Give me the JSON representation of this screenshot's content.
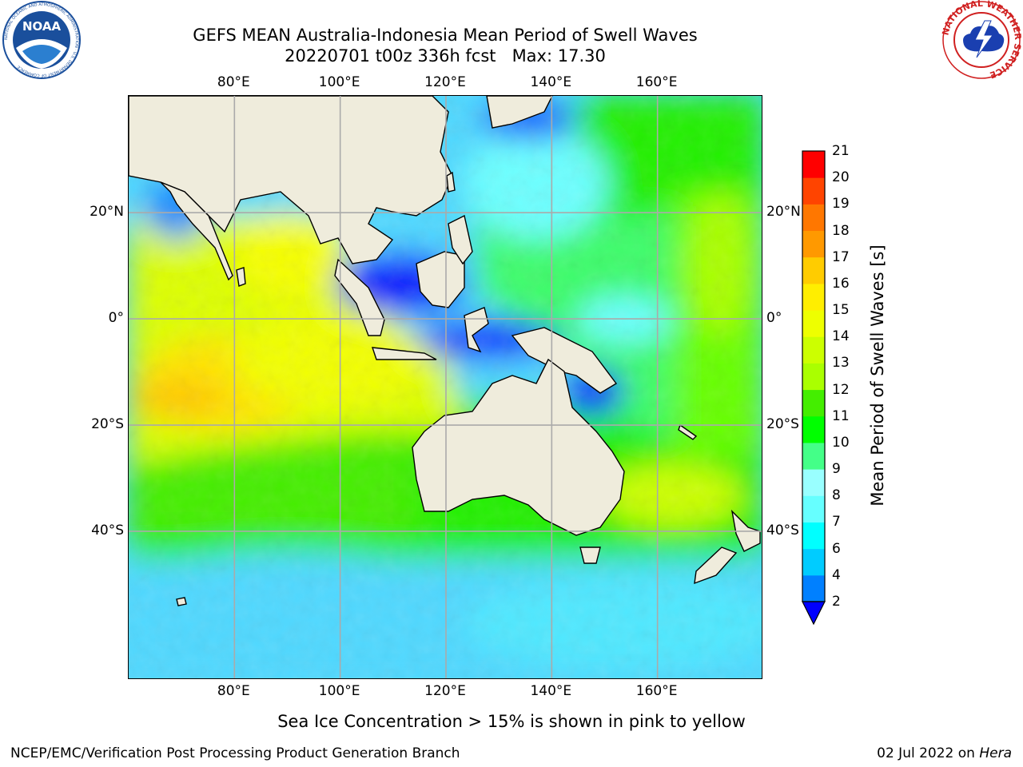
{
  "header": {
    "title_line1": "GEFS MEAN Australia-Indonesia Mean Period of Swell Waves",
    "title_line2": "20220701 t00z 336h fcst   Max: 17.30"
  },
  "logos": {
    "left": {
      "name": "noaa-logo",
      "text": "NOAA",
      "ring_text": "NATIONAL OCEANIC AND ATMOSPHERIC ADMINISTRATION · U.S. DEPARTMENT OF COMMERCE"
    },
    "right": {
      "name": "nws-logo",
      "ring_text": "NATIONAL WEATHER SERVICE"
    }
  },
  "map": {
    "lon_labels": [
      "80°E",
      "100°E",
      "120°E",
      "140°E",
      "160°E"
    ],
    "lat_labels": [
      "20°N",
      "0°",
      "20°S",
      "40°S"
    ],
    "lon_values": [
      80,
      100,
      120,
      140,
      160
    ],
    "lat_values": [
      20,
      0,
      -20,
      -40
    ],
    "lon_range": [
      60,
      180
    ],
    "lat_range": [
      -68,
      42
    ],
    "grid": true,
    "land_color": "#efecdc",
    "coastline_color": "#000000"
  },
  "colorbar": {
    "label": "Mean Period of Swell Waves [s]",
    "ticks": [
      "2",
      "4",
      "6",
      "7",
      "8",
      "9",
      "10",
      "11",
      "12",
      "13",
      "14",
      "15",
      "16",
      "17",
      "18",
      "19",
      "20",
      "21"
    ],
    "colors": [
      "#0080ff",
      "#00ccff",
      "#00ffff",
      "#66ffff",
      "#99ffff",
      "#44ff88",
      "#00ff00",
      "#44ee00",
      "#aaff00",
      "#ccff00",
      "#eeff00",
      "#ffee00",
      "#ffcc00",
      "#ff9900",
      "#ff7700",
      "#ff4400",
      "#ff0000"
    ],
    "under_color": "#0000ff"
  },
  "notes": {
    "ice": "Sea Ice Concentration > 15% is shown in pink to yellow"
  },
  "footer": {
    "left": "NCEP/EMC/Verification Post Processing Product Generation Branch",
    "date": "02 Jul 2022 on ",
    "machine": "Hera"
  }
}
